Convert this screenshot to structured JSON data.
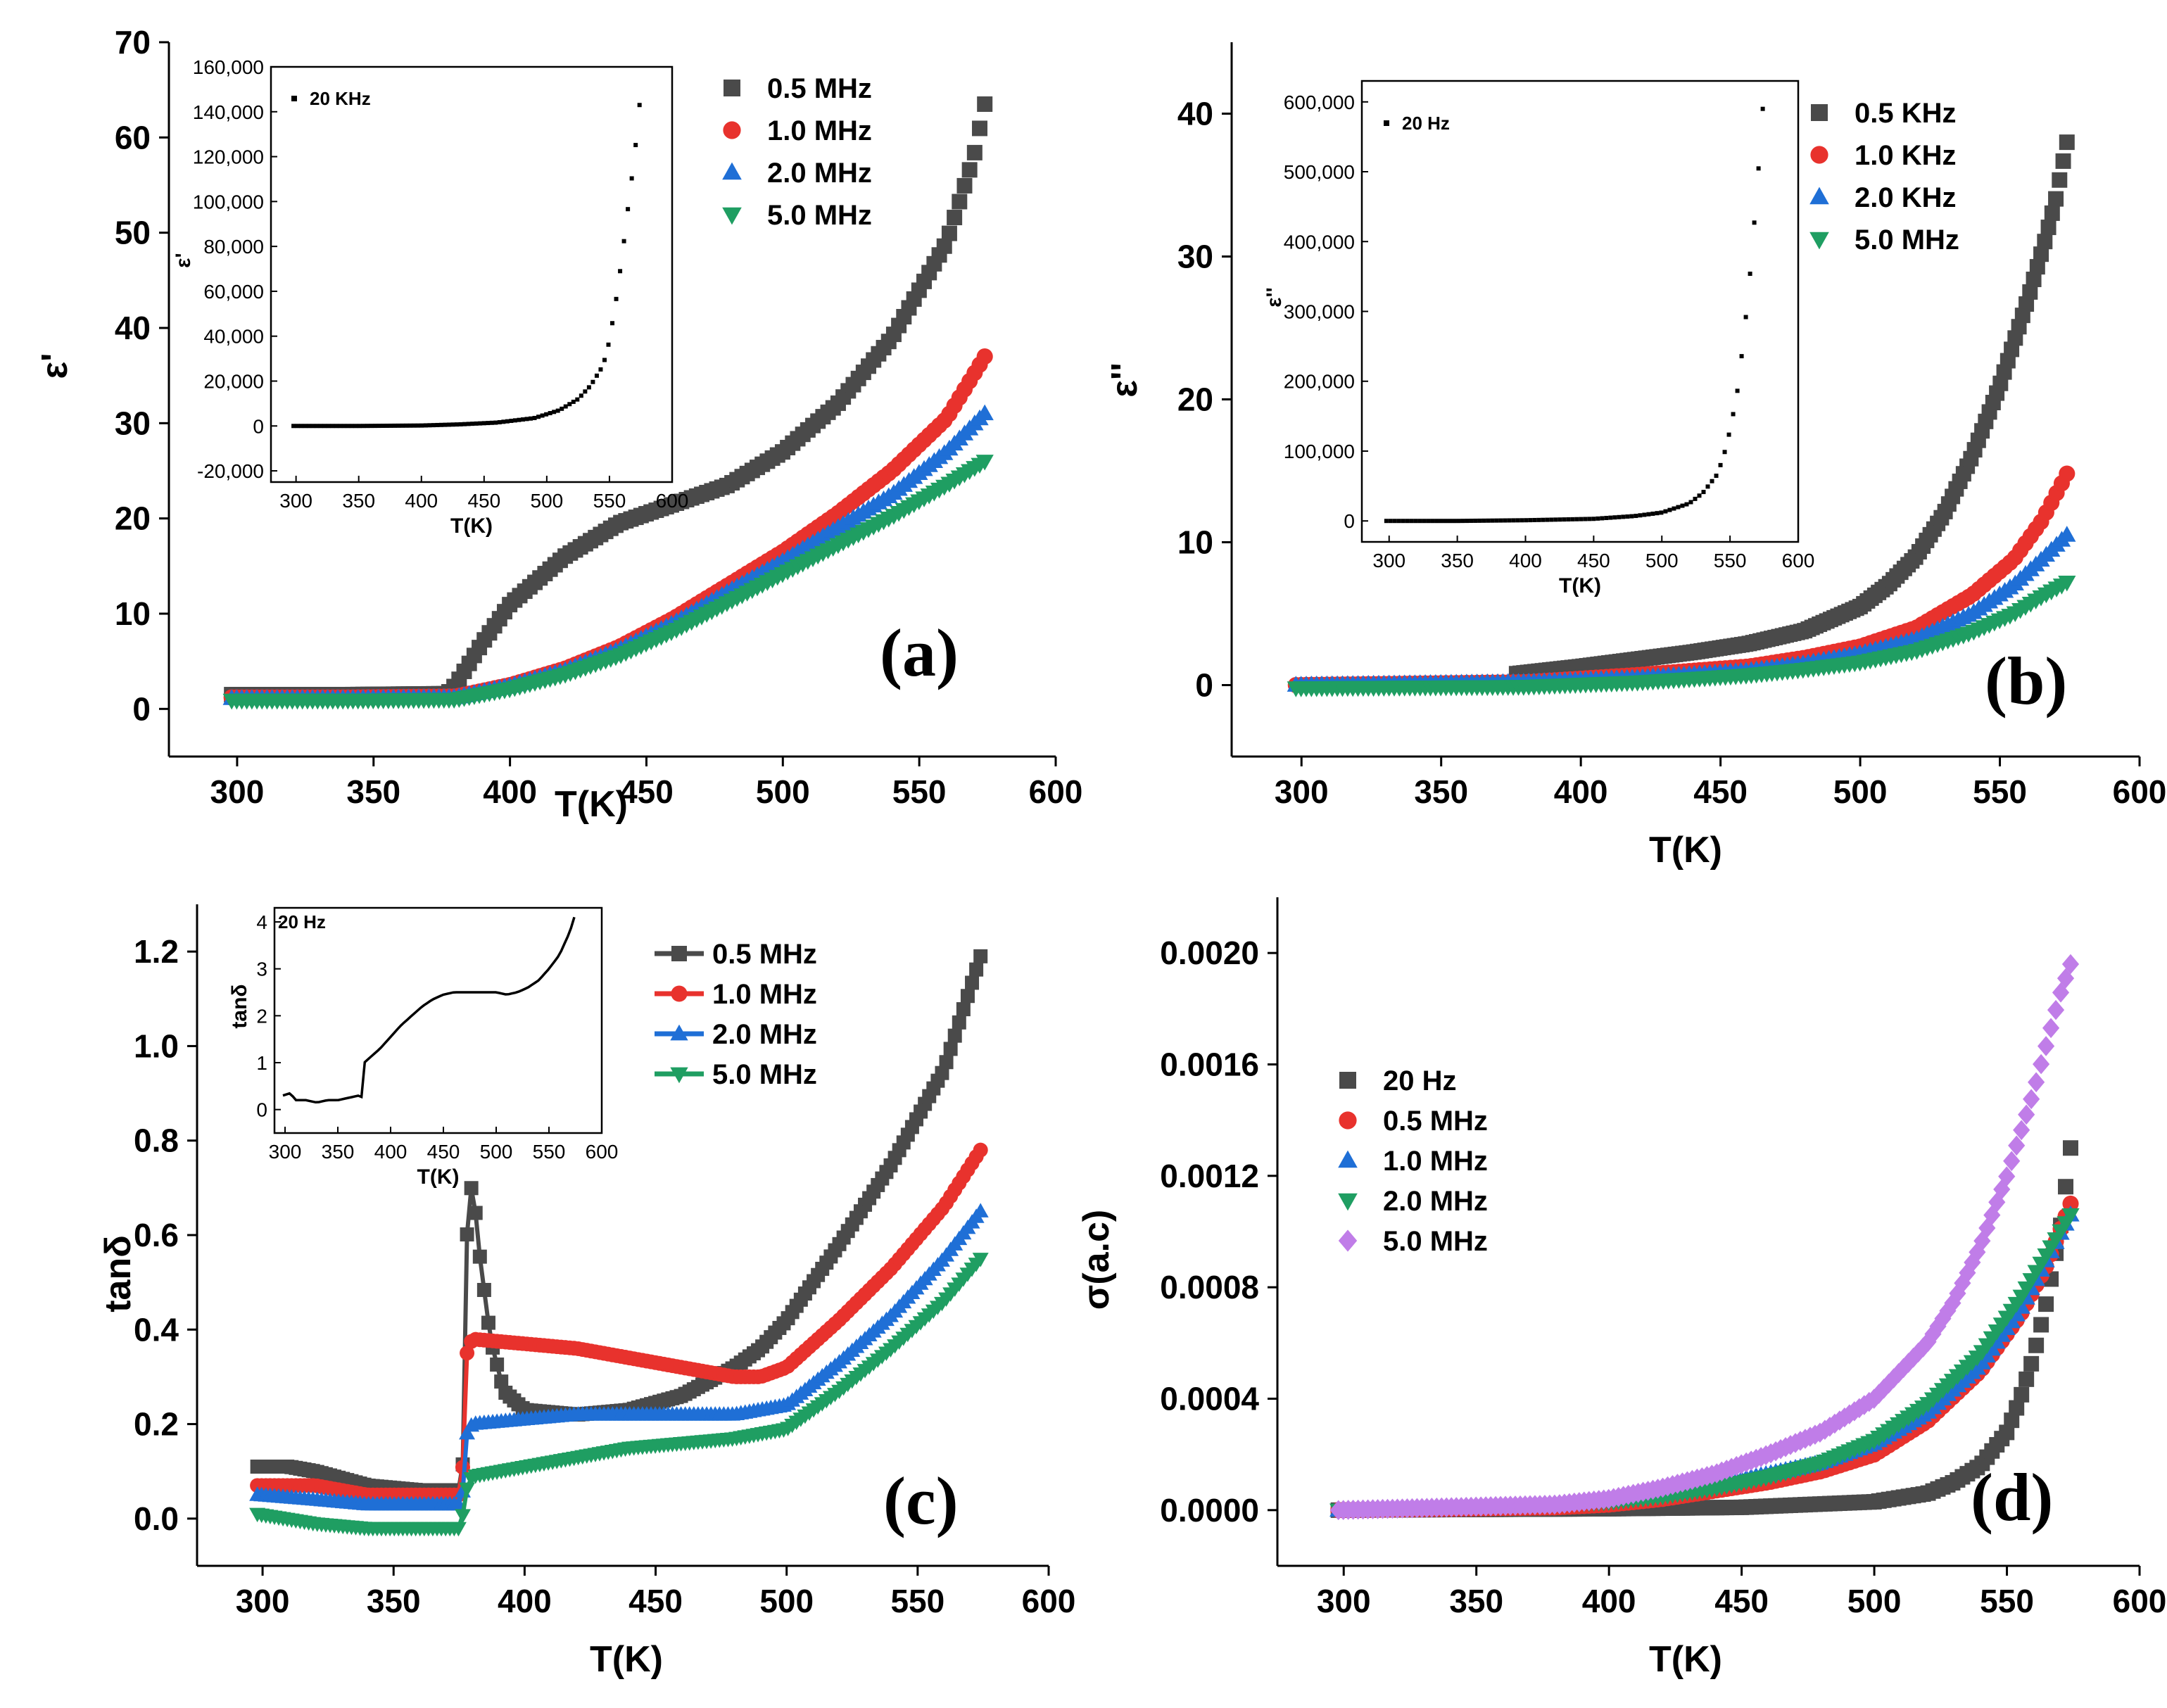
{
  "chart_data": [
    {
      "panel": "(a)",
      "type": "scatter",
      "xlabel": "T(K)",
      "ylabel": "ε'",
      "xlim": [
        275,
        600
      ],
      "ylim": [
        -5,
        70
      ],
      "xticks": [
        300,
        350,
        400,
        450,
        500,
        550,
        600
      ],
      "yticks": [
        0,
        10,
        20,
        30,
        40,
        50,
        60,
        70
      ],
      "legend_position": "top-right",
      "series": [
        {
          "name": "0.5 MHz",
          "color": "#4a4a4a",
          "marker": "square",
          "x": [
            298,
            340,
            377,
            380,
            390,
            400,
            420,
            440,
            460,
            480,
            500,
            520,
            540,
            560,
            570,
            574
          ],
          "y": [
            1.5,
            1.5,
            1.6,
            2.5,
            7,
            11,
            16,
            19.5,
            21.5,
            23.5,
            27,
            32,
            39,
            49,
            58,
            63.5
          ]
        },
        {
          "name": "1.0 MHz",
          "color": "#e8322d",
          "marker": "circle",
          "x": [
            298,
            340,
            380,
            400,
            420,
            440,
            460,
            480,
            500,
            520,
            540,
            560,
            574
          ],
          "y": [
            1.2,
            1.2,
            1.3,
            2.5,
            4.2,
            6.5,
            9.5,
            13,
            16.5,
            20.5,
            25,
            30.5,
            37
          ]
        },
        {
          "name": "2.0 MHz",
          "color": "#1f6fd6",
          "marker": "triangle-up",
          "x": [
            298,
            340,
            380,
            400,
            420,
            440,
            460,
            480,
            500,
            520,
            540,
            560,
            574
          ],
          "y": [
            1.1,
            1.1,
            1.2,
            2.4,
            4,
            6.2,
            9,
            12.3,
            15.5,
            19,
            22.5,
            27,
            31
          ]
        },
        {
          "name": "5.0 MHz",
          "color": "#1f9e62",
          "marker": "triangle-down",
          "x": [
            298,
            340,
            380,
            400,
            420,
            440,
            460,
            480,
            500,
            520,
            540,
            560,
            574
          ],
          "y": [
            0.9,
            0.9,
            1,
            2.1,
            3.6,
            5.6,
            8.2,
            11.2,
            14.2,
            17.2,
            20.2,
            23.5,
            26
          ]
        }
      ],
      "inset": {
        "xlabel": "T(K)",
        "ylabel": "ε'",
        "xlim": [
          280,
          600
        ],
        "ylim": [
          -25000,
          160000
        ],
        "xticks": [
          300,
          350,
          400,
          450,
          500,
          550,
          600
        ],
        "yticks": [
          -20000,
          0,
          20000,
          40000,
          60000,
          80000,
          100000,
          120000,
          140000,
          160000
        ],
        "ytick_labels": [
          "-20,000",
          "0",
          "20,000",
          "40,000",
          "60,000",
          "80,000",
          "100,000",
          "120,000",
          "140,000",
          "160,000"
        ],
        "series_name": "20 KHz",
        "x": [
          298,
          350,
          400,
          430,
          460,
          490,
          510,
          525,
          535,
          545,
          550,
          555,
          560,
          565,
          570,
          574
        ],
        "y": [
          0,
          0,
          200,
          700,
          1500,
          3500,
          7000,
          12000,
          18000,
          27000,
          38000,
          55000,
          75000,
          98000,
          120000,
          143000
        ]
      }
    },
    {
      "panel": "(b)",
      "type": "scatter",
      "xlabel": "T(K)",
      "ylabel": "ε''",
      "xlim": [
        275,
        600
      ],
      "ylim": [
        -5,
        45
      ],
      "xticks": [
        300,
        350,
        400,
        450,
        500,
        550,
        600
      ],
      "yticks": [
        0,
        10,
        20,
        30,
        40
      ],
      "legend_position": "top-right",
      "series": [
        {
          "name": "0.5 KHz",
          "color": "#4a4a4a",
          "marker": "square",
          "x": [
            377,
            400,
            420,
            440,
            460,
            480,
            500,
            510,
            520,
            530,
            540,
            550,
            560,
            566,
            570,
            574
          ],
          "y": [
            0.8,
            1.3,
            1.8,
            2.3,
            2.9,
            3.8,
            5.5,
            7,
            9,
            12,
            16,
            21,
            27,
            31,
            34,
            38
          ]
        },
        {
          "name": "1.0 KHz",
          "color": "#e8322d",
          "marker": "circle",
          "x": [
            298,
            380,
            420,
            460,
            480,
            500,
            520,
            540,
            555,
            565,
            574
          ],
          "y": [
            0,
            0.2,
            0.7,
            1.3,
            1.9,
            2.7,
            4,
            6.3,
            8.8,
            11.5,
            14.8
          ]
        },
        {
          "name": "2.0 KHz",
          "color": "#1f6fd6",
          "marker": "triangle-up",
          "x": [
            298,
            380,
            420,
            460,
            480,
            500,
            520,
            540,
            555,
            565,
            574
          ],
          "y": [
            0,
            0.2,
            0.5,
            1.0,
            1.5,
            2.2,
            3.2,
            5,
            7,
            8.8,
            10.5
          ]
        },
        {
          "name": "5.0 MHz",
          "color": "#1f9e62",
          "marker": "triangle-down",
          "x": [
            298,
            380,
            420,
            460,
            480,
            500,
            520,
            540,
            555,
            565,
            574
          ],
          "y": [
            -0.2,
            -0.1,
            0.2,
            0.7,
            1.1,
            1.6,
            2.4,
            3.7,
            5,
            6.2,
            7.2
          ]
        }
      ],
      "inset": {
        "xlabel": "T(K)",
        "ylabel": "ε''",
        "xlim": [
          280,
          600
        ],
        "ylim": [
          -30000,
          630000
        ],
        "xticks": [
          300,
          350,
          400,
          450,
          500,
          550,
          600
        ],
        "yticks": [
          0,
          100000,
          200000,
          300000,
          400000,
          500000,
          600000
        ],
        "ytick_labels": [
          "0",
          "100,000",
          "200,000",
          "300,000",
          "400,000",
          "500,000",
          "600,000"
        ],
        "series_name": "20 Hz",
        "x": [
          298,
          350,
          400,
          450,
          480,
          500,
          520,
          530,
          540,
          545,
          550,
          555,
          560,
          565,
          570,
          574
        ],
        "y": [
          0,
          0,
          1000,
          3000,
          7000,
          12000,
          25000,
          40000,
          65000,
          90000,
          130000,
          180000,
          260000,
          360000,
          480000,
          590000
        ]
      }
    },
    {
      "panel": "(c)",
      "type": "line",
      "xlabel": "T(K)",
      "ylabel": "tanδ",
      "xlim": [
        275,
        600
      ],
      "ylim": [
        -0.1,
        1.3
      ],
      "xticks": [
        300,
        350,
        400,
        450,
        500,
        550,
        600
      ],
      "yticks": [
        0.0,
        0.2,
        0.4,
        0.6,
        0.8,
        1.0,
        1.2
      ],
      "ytick_labels": [
        "0.0",
        "0.2",
        "0.4",
        "0.6",
        "0.8",
        "1.0",
        "1.2"
      ],
      "legend_position": "top-right",
      "series": [
        {
          "name": "0.5 MHz",
          "color": "#4a4a4a",
          "marker": "square",
          "x": [
            298,
            310,
            320,
            340,
            360,
            376,
            377,
            378,
            380,
            383,
            387,
            392,
            400,
            420,
            440,
            460,
            480,
            490,
            500,
            520,
            540,
            560,
            574
          ],
          "y": [
            0.11,
            0.11,
            0.1,
            0.07,
            0.06,
            0.06,
            0.2,
            0.6,
            0.72,
            0.55,
            0.38,
            0.27,
            0.23,
            0.22,
            0.23,
            0.26,
            0.32,
            0.36,
            0.42,
            0.58,
            0.75,
            0.95,
            1.19
          ]
        },
        {
          "name": "1.0 MHz",
          "color": "#e8322d",
          "marker": "circle",
          "x": [
            298,
            320,
            340,
            360,
            376,
            377,
            378,
            380,
            400,
            420,
            440,
            460,
            480,
            490,
            500,
            520,
            540,
            560,
            574
          ],
          "y": [
            0.07,
            0.07,
            0.05,
            0.05,
            0.05,
            0.2,
            0.35,
            0.38,
            0.37,
            0.36,
            0.34,
            0.32,
            0.3,
            0.3,
            0.32,
            0.42,
            0.53,
            0.66,
            0.78
          ]
        },
        {
          "name": "2.0 MHz",
          "color": "#1f6fd6",
          "marker": "triangle-up",
          "x": [
            298,
            320,
            340,
            360,
            376,
            377,
            378,
            380,
            400,
            420,
            440,
            460,
            480,
            500,
            520,
            540,
            560,
            574
          ],
          "y": [
            0.05,
            0.04,
            0.03,
            0.03,
            0.03,
            0.1,
            0.18,
            0.2,
            0.21,
            0.22,
            0.22,
            0.22,
            0.22,
            0.24,
            0.33,
            0.43,
            0.55,
            0.65
          ]
        },
        {
          "name": "5.0 MHz",
          "color": "#1f9e62",
          "marker": "triangle-down",
          "x": [
            298,
            320,
            340,
            360,
            376,
            377,
            380,
            400,
            420,
            440,
            460,
            480,
            500,
            520,
            540,
            560,
            574
          ],
          "y": [
            0.01,
            -0.01,
            -0.02,
            -0.02,
            -0.02,
            0.05,
            0.09,
            0.11,
            0.13,
            0.15,
            0.16,
            0.17,
            0.19,
            0.27,
            0.36,
            0.46,
            0.55
          ]
        }
      ],
      "inset": {
        "xlabel": "T(K)",
        "ylabel": "tanδ",
        "xlim": [
          290,
          600
        ],
        "ylim": [
          -0.5,
          4.3
        ],
        "xticks": [
          300,
          350,
          400,
          450,
          500,
          550,
          600
        ],
        "yticks": [
          0,
          1,
          2,
          3,
          4
        ],
        "series_name": "20 Hz",
        "x": [
          298,
          305,
          310,
          320,
          330,
          340,
          350,
          360,
          370,
          374,
          375,
          380,
          390,
          400,
          410,
          420,
          430,
          440,
          450,
          460,
          470,
          480,
          490,
          500,
          510,
          520,
          530,
          540,
          550,
          560,
          570,
          574
        ],
        "y": [
          0.3,
          0.35,
          0.2,
          0.2,
          0.15,
          0.2,
          0.2,
          0.25,
          0.3,
          0.25,
          1.0,
          1.1,
          1.3,
          1.55,
          1.8,
          2.0,
          2.2,
          2.35,
          2.45,
          2.5,
          2.5,
          2.5,
          2.5,
          2.5,
          2.45,
          2.5,
          2.6,
          2.75,
          3.0,
          3.3,
          3.8,
          4.1
        ]
      }
    },
    {
      "panel": "(d)",
      "type": "scatter",
      "xlabel": "T(K)",
      "ylabel": "σ(a.c)",
      "xlim": [
        275,
        600
      ],
      "ylim": [
        -0.0002,
        0.0022
      ],
      "xticks": [
        300,
        350,
        400,
        450,
        500,
        550,
        600
      ],
      "yticks": [
        0.0,
        0.0004,
        0.0008,
        0.0012,
        0.0016,
        0.002
      ],
      "ytick_labels": [
        "0.0000",
        "0.0004",
        "0.0008",
        "0.0012",
        "0.0016",
        "0.0020"
      ],
      "legend_position": "center-left",
      "series": [
        {
          "name": "20 Hz",
          "color": "#4a4a4a",
          "marker": "square",
          "x": [
            298,
            400,
            450,
            500,
            520,
            530,
            540,
            550,
            555,
            560,
            565,
            570,
            574
          ],
          "y": [
            0,
            5e-06,
            1e-05,
            3e-05,
            6e-05,
            0.0001,
            0.00016,
            0.00028,
            0.0004,
            0.00055,
            0.00075,
            0.001,
            0.0013
          ]
        },
        {
          "name": "0.5 MHz",
          "color": "#e8322d",
          "marker": "circle",
          "x": [
            298,
            380,
            400,
            420,
            440,
            460,
            480,
            500,
            520,
            540,
            555,
            565,
            574
          ],
          "y": [
            0,
            1e-05,
            2e-05,
            4e-05,
            7e-05,
            0.0001,
            0.00014,
            0.0002,
            0.00032,
            0.0005,
            0.0007,
            0.00088,
            0.0011
          ]
        },
        {
          "name": "1.0 MHz",
          "color": "#1f6fd6",
          "marker": "triangle-up",
          "x": [
            298,
            380,
            400,
            420,
            440,
            460,
            480,
            500,
            520,
            540,
            555,
            565,
            574
          ],
          "y": [
            0,
            2e-05,
            4e-05,
            6e-05,
            9e-05,
            0.00013,
            0.00017,
            0.00024,
            0.00035,
            0.00052,
            0.00072,
            0.0009,
            0.00106
          ]
        },
        {
          "name": "2.0 MHz",
          "color": "#1f9e62",
          "marker": "triangle-down",
          "x": [
            298,
            380,
            400,
            420,
            440,
            460,
            480,
            500,
            520,
            540,
            555,
            565,
            574
          ],
          "y": [
            0,
            2e-05,
            3e-05,
            5e-05,
            8e-05,
            0.00012,
            0.00017,
            0.00025,
            0.00038,
            0.00056,
            0.00076,
            0.00092,
            0.00106
          ]
        },
        {
          "name": "5.0 MHz",
          "color": "#c07de8",
          "marker": "diamond",
          "x": [
            298,
            380,
            400,
            420,
            440,
            460,
            480,
            500,
            520,
            530,
            540,
            550,
            560,
            570,
            574
          ],
          "y": [
            0,
            2e-05,
            4e-05,
            8e-05,
            0.00013,
            0.0002,
            0.00028,
            0.0004,
            0.0006,
            0.00075,
            0.00095,
            0.0012,
            0.0015,
            0.00185,
            0.00196
          ]
        }
      ]
    }
  ]
}
